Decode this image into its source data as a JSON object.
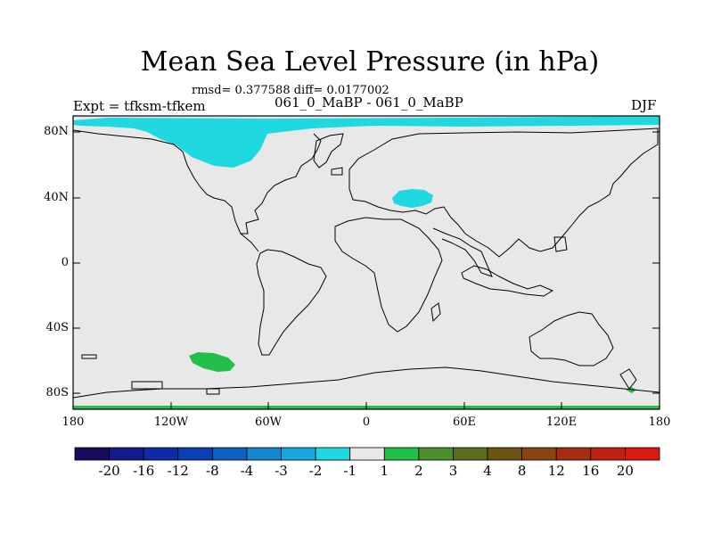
{
  "title": "Mean Sea Level Pressure (in hPa)",
  "stats": "rmsd= 0.377588 diff= 0.0177002",
  "left_label": "Expt = tfksm-tfkem",
  "center_label": "061_0_MaBP - 061_0_MaBP",
  "right_label": "DJF",
  "lat_ticks": [
    "80N",
    "40N",
    "0",
    "40S",
    "80S"
  ],
  "lon_ticks": [
    "180",
    "120W",
    "60W",
    "0",
    "60E",
    "120E",
    "180"
  ],
  "colorbar": {
    "labels": [
      "-20",
      "-16",
      "-12",
      "-8",
      "-4",
      "-3",
      "-2",
      "-1",
      "1",
      "2",
      "3",
      "4",
      "8",
      "12",
      "16",
      "20"
    ],
    "colors": [
      "#1a0a5e",
      "#141a8c",
      "#0f2aa8",
      "#0a3fb5",
      "#0d5fc4",
      "#1585d0",
      "#1aa8dc",
      "#20d8e0",
      "#e8e8e8",
      "#22c04a",
      "#4a8f2c",
      "#5a6d1a",
      "#6b5510",
      "#8a4312",
      "#a52e10",
      "#c02212",
      "#d81a10"
    ]
  },
  "map": {
    "ocean_color": "#e8e8e8",
    "negative_color": "#20d8e0",
    "positive_color": "#22c04a"
  }
}
